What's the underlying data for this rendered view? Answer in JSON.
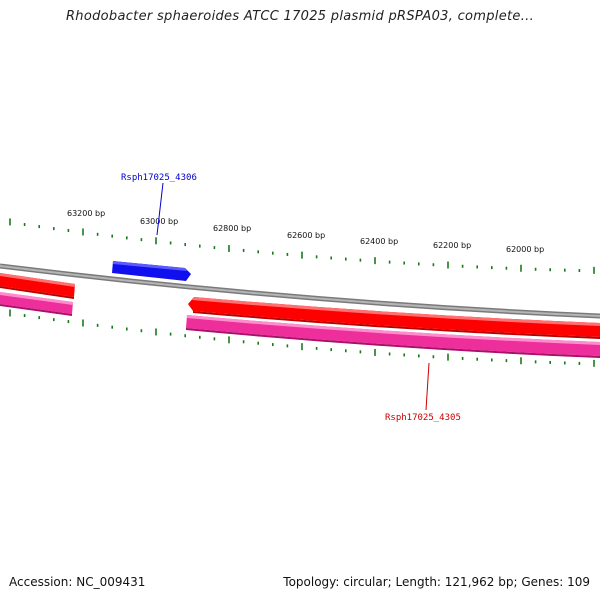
{
  "title": "Rhodobacter sphaeroides ATCC 17025 plasmid pRSPA03, complete...",
  "colors": {
    "backbone": "#8a8a8a",
    "forward_gene": "#0000ee",
    "reverse_gene": "#ff0000",
    "reverse_gene_second": "#ee2e9a",
    "tick": "#1a7a1a",
    "forward_label": "#0000cc",
    "reverse_label": "#cc0000"
  },
  "ruler": {
    "labels": [
      "63200 bp",
      "63000 bp",
      "62800 bp",
      "62600 bp",
      "62400 bp",
      "62200 bp",
      "62000 bp"
    ]
  },
  "genes": [
    {
      "label": "Rsph17025_4306",
      "strand": "forward",
      "icon": "arrow-right"
    },
    {
      "label": "Rsph17025_4305",
      "strand": "reverse",
      "icon": "arrow-left"
    }
  ],
  "footer": {
    "accession": "Accession: NC_009431",
    "summary": "Topology: circular; Length: 121,962 bp; Genes: 109"
  }
}
